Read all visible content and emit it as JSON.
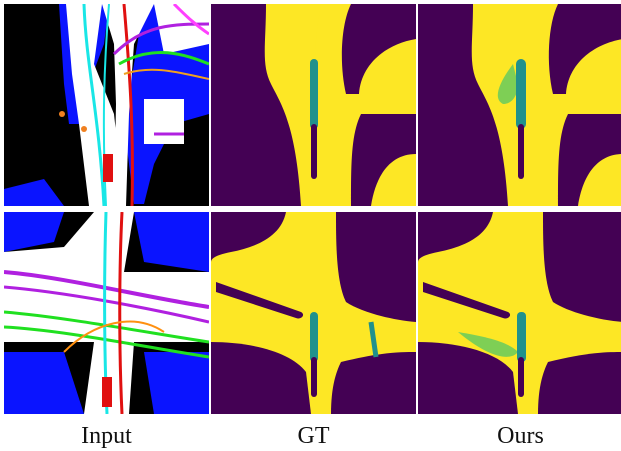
{
  "figure": {
    "columns": [
      {
        "label": "Input"
      },
      {
        "label": "GT"
      },
      {
        "label": "Ours"
      }
    ]
  },
  "colors": {
    "background_black": "#000000",
    "drivable_white": "#ffffff",
    "lane_blue": "#0a14ff",
    "map_purple": "#440154",
    "map_yellow": "#fde725",
    "trajectory_teal": "#21918c",
    "agent_red": "#e01010"
  }
}
